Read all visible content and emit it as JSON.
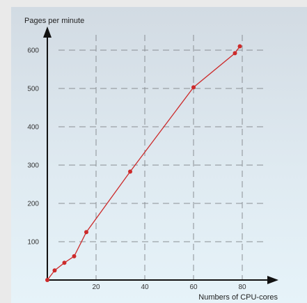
{
  "chart_data": {
    "type": "line",
    "ylabel": "Pages per minute",
    "xlabel": "Numbers of CPU-cores",
    "x_ticks": [
      20,
      40,
      60,
      80
    ],
    "y_ticks": [
      100,
      200,
      300,
      400,
      500,
      600
    ],
    "x_tick_labels": [
      "20",
      "40",
      "60",
      "80"
    ],
    "y_tick_labels": [
      "100",
      "200",
      "300",
      "400",
      "500",
      "600"
    ],
    "xlim": [
      0,
      90
    ],
    "ylim": [
      0,
      650
    ],
    "grid": true,
    "series": [
      {
        "color": "#cc2a2a",
        "points": [
          {
            "x": 0,
            "y": 0
          },
          {
            "x": 3,
            "y": 25
          },
          {
            "x": 7,
            "y": 45
          },
          {
            "x": 11,
            "y": 62
          },
          {
            "x": 16,
            "y": 125
          },
          {
            "x": 34,
            "y": 283
          },
          {
            "x": 60,
            "y": 503
          },
          {
            "x": 77,
            "y": 592
          },
          {
            "x": 79,
            "y": 610
          }
        ]
      }
    ],
    "colors": {
      "axis": "#111111",
      "grid": "#8a8f94",
      "line": "#cc2a2a",
      "marker": "#cc2a2a"
    }
  }
}
